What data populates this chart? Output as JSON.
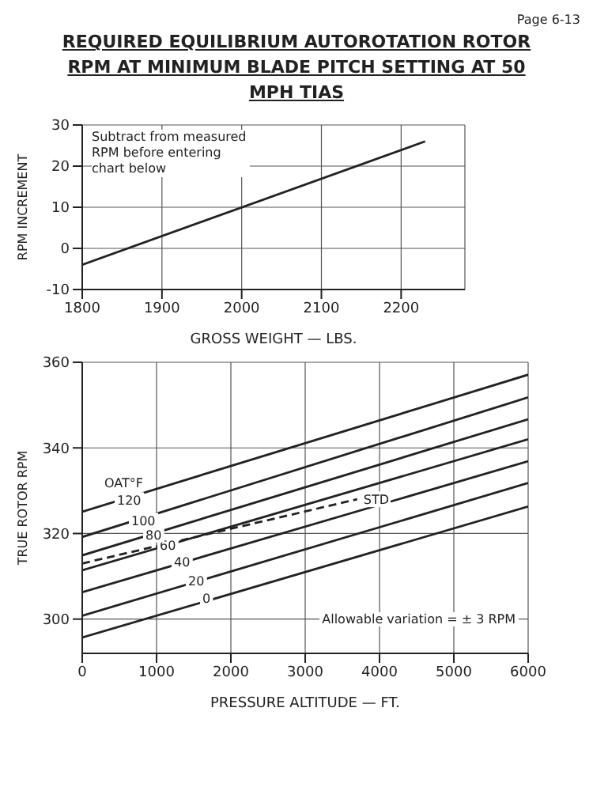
{
  "chart_data": [
    {
      "type": "line",
      "title": "REQUIRED EQUILIBRIUM AUTOROTATION ROTOR RPM AT MINIMUM BLADE PITCH SETTING AT 50 MPH TIAS",
      "annotations": [
        "Page 6-13",
        {
          "text": "Subtract from measured RPM before entering chart below"
        }
      ],
      "xlabel": "GROSS WEIGHT — LBS.",
      "ylabel": "RPM INCREMENT",
      "xlim": [
        1800,
        2280
      ],
      "xticks": [
        1800,
        1900,
        2000,
        2100,
        2200
      ],
      "ylim": [
        -10,
        30
      ],
      "yticks": [
        -10,
        0,
        10,
        20,
        30
      ],
      "grid": true,
      "series": [
        {
          "color": "#222222",
          "x": [
            1800,
            2230
          ],
          "values": [
            -4,
            26
          ]
        }
      ]
    },
    {
      "type": "line",
      "xlabel": "PRESSURE ALTITUDE — FT.",
      "ylabel": "TRUE ROTOR RPM",
      "legend_title": "OAT°F",
      "annotations": [
        "Allowable variation = ± 3 RPM"
      ],
      "xlim": [
        0,
        6000
      ],
      "xticks": [
        0,
        1000,
        2000,
        3000,
        4000,
        5000,
        6000
      ],
      "ylim": [
        292,
        360
      ],
      "yticks": [
        300,
        320,
        340,
        360
      ],
      "grid": true,
      "series": [
        {
          "name": "0",
          "color": "#222222",
          "x": [
            0,
            6000
          ],
          "values": [
            295.7,
            326.3
          ]
        },
        {
          "name": "20",
          "color": "#222222",
          "x": [
            0,
            6000
          ],
          "values": [
            300.8,
            331.8
          ]
        },
        {
          "name": "40",
          "color": "#222222",
          "x": [
            0,
            6000
          ],
          "values": [
            306.3,
            336.9
          ]
        },
        {
          "name": "60",
          "color": "#222222",
          "x": [
            0,
            6000
          ],
          "values": [
            311.4,
            342
          ]
        },
        {
          "name": "80",
          "color": "#222222",
          "x": [
            0,
            6000
          ],
          "values": [
            314.9,
            346.7
          ]
        },
        {
          "name": "100",
          "color": "#222222",
          "x": [
            0,
            6000
          ],
          "values": [
            319.2,
            351.8
          ]
        },
        {
          "name": "120",
          "color": "#222222",
          "x": [
            0,
            6000
          ],
          "values": [
            325.1,
            357.1
          ]
        },
        {
          "name": "STD",
          "color": "#222222",
          "line_style": "dashed",
          "x": [
            0,
            3700
          ],
          "values": [
            313,
            328
          ]
        }
      ]
    }
  ]
}
